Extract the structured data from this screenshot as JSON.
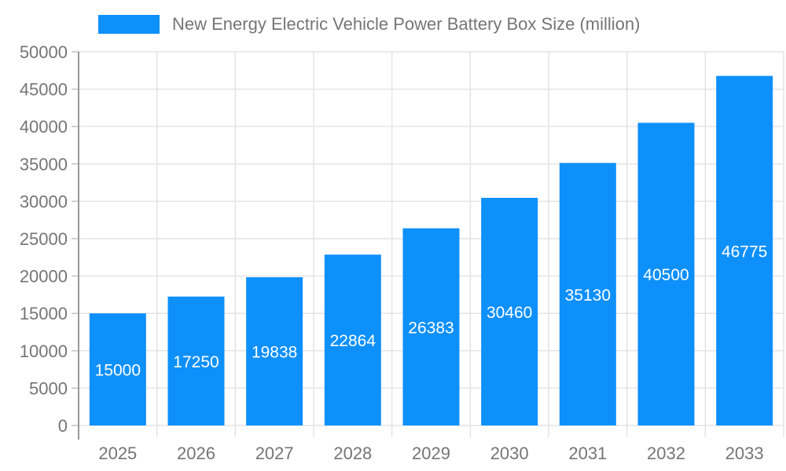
{
  "legend": {
    "label": "New Energy Electric Vehicle Power Battery Box Size (million)"
  },
  "chart_data": {
    "type": "bar",
    "title": "New Energy Electric Vehicle Power Battery Box Size (million)",
    "categories": [
      "2025",
      "2026",
      "2027",
      "2028",
      "2029",
      "2030",
      "2031",
      "2032",
      "2033"
    ],
    "values": [
      15000,
      17250,
      19838,
      22864,
      26383,
      30460,
      35130,
      40500,
      46775
    ],
    "series": [
      {
        "name": "New Energy Electric Vehicle Power Battery Box Size (million)",
        "values": [
          15000,
          17250,
          19838,
          22864,
          26383,
          30460,
          35130,
          40500,
          46775
        ]
      }
    ],
    "xlabel": "",
    "ylabel": "",
    "ylim": [
      0,
      50000
    ],
    "ytick_step": 5000,
    "ytick_labels": [
      "0",
      "5000",
      "10000",
      "15000",
      "20000",
      "25000",
      "30000",
      "35000",
      "40000",
      "45000",
      "50000"
    ],
    "grid": true,
    "legend_position": "top-left",
    "value_labels": "inside-center",
    "colors": {
      "bar": "#0e90fb",
      "value_label": "#ffffff",
      "axis_text": "#757575",
      "grid_line": "#e3e3e3",
      "y_axis_line": "#999999",
      "tick": "#bdbdbd",
      "background": "#ffffff"
    }
  }
}
